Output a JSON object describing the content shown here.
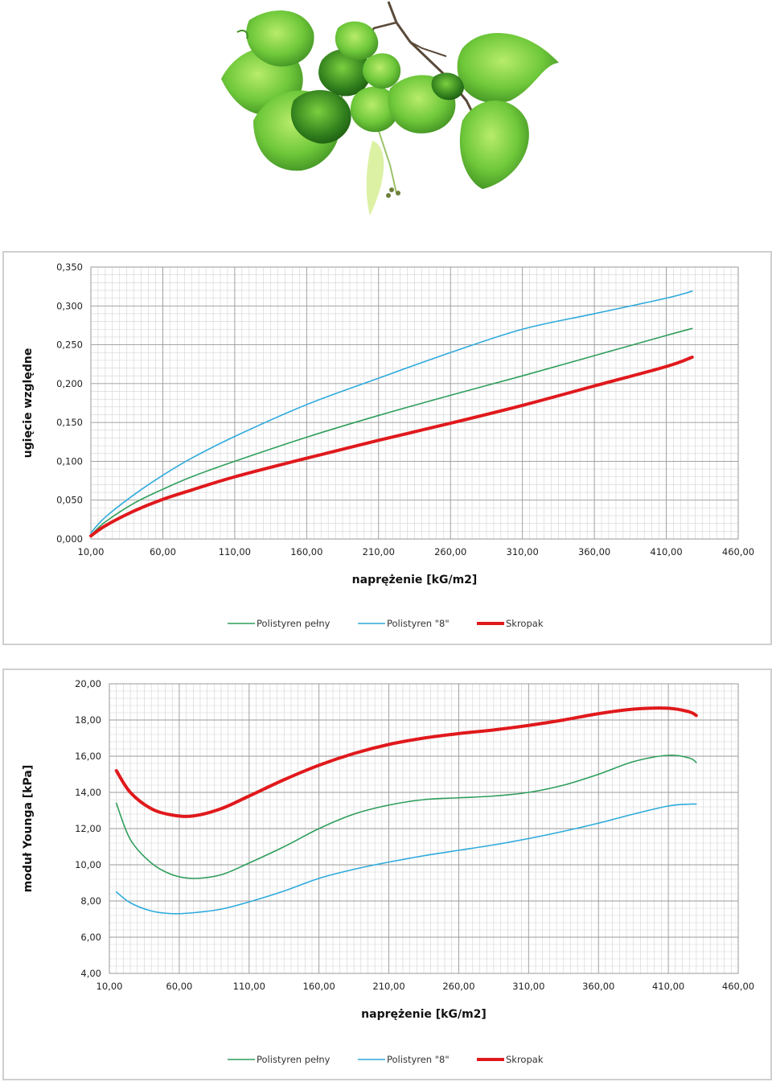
{
  "leaf_image": {
    "icon": "linden-leaves-branch-icon"
  },
  "charts": [
    {
      "type": "line",
      "xlabel": "naprężenie [kG/m2]",
      "ylabel": "ugięcie względne",
      "xlim": [
        10,
        460
      ],
      "ylim": [
        0,
        0.35
      ],
      "x_ticks": [
        "10,00",
        "60,00",
        "110,00",
        "160,00",
        "210,00",
        "260,00",
        "310,00",
        "360,00",
        "410,00",
        "460,00"
      ],
      "y_ticks": [
        "0,000",
        "0,050",
        "0,100",
        "0,150",
        "0,200",
        "0,250",
        "0,300",
        "0,350"
      ],
      "x_tick_values": [
        10,
        60,
        110,
        160,
        210,
        260,
        310,
        360,
        410,
        460
      ],
      "y_tick_values": [
        0,
        0.05,
        0.1,
        0.15,
        0.2,
        0.25,
        0.3,
        0.35
      ],
      "grid": true,
      "legend_position": "bottom",
      "x": [
        10,
        20,
        40,
        60,
        80,
        110,
        160,
        210,
        260,
        310,
        360,
        410,
        428
      ],
      "series": [
        {
          "name": "Polistyren pełny",
          "color": "#2e9e5b",
          "width": 1.6,
          "values": [
            0.005,
            0.022,
            0.046,
            0.064,
            0.08,
            0.1,
            0.131,
            0.159,
            0.185,
            0.21,
            0.236,
            0.262,
            0.271
          ]
        },
        {
          "name": "Polistyren \"8\"",
          "color": "#2eaadc",
          "width": 1.6,
          "values": [
            0.008,
            0.028,
            0.057,
            0.082,
            0.104,
            0.132,
            0.173,
            0.207,
            0.24,
            0.27,
            0.29,
            0.31,
            0.319
          ]
        },
        {
          "name": "Skropak",
          "color": "#e0191c",
          "width": 4,
          "values": [
            0.004,
            0.017,
            0.036,
            0.051,
            0.063,
            0.08,
            0.104,
            0.127,
            0.149,
            0.172,
            0.197,
            0.222,
            0.234
          ]
        }
      ]
    },
    {
      "type": "line",
      "xlabel": "naprężenie [kG/m2]",
      "ylabel": "moduł Younga [kPa]",
      "xlim": [
        10,
        460
      ],
      "ylim": [
        4,
        20
      ],
      "x_ticks": [
        "10,00",
        "60,00",
        "110,00",
        "160,00",
        "210,00",
        "260,00",
        "310,00",
        "360,00",
        "410,00",
        "460,00"
      ],
      "y_ticks": [
        "4,00",
        "6,00",
        "8,00",
        "10,00",
        "12,00",
        "14,00",
        "16,00",
        "18,00",
        "20,00"
      ],
      "x_tick_values": [
        10,
        60,
        110,
        160,
        210,
        260,
        310,
        360,
        410,
        460
      ],
      "y_tick_values": [
        4,
        6,
        8,
        10,
        12,
        14,
        16,
        18,
        20
      ],
      "grid": true,
      "legend_position": "bottom",
      "x": [
        15,
        25,
        40,
        55,
        70,
        90,
        110,
        135,
        160,
        185,
        210,
        235,
        260,
        285,
        310,
        335,
        360,
        385,
        410,
        425,
        430
      ],
      "series": [
        {
          "name": "Polistyren pełny",
          "color": "#2e9e5b",
          "width": 1.6,
          "values": [
            13.4,
            11.4,
            10.1,
            9.45,
            9.25,
            9.45,
            10.1,
            11.0,
            12.0,
            12.8,
            13.3,
            13.6,
            13.7,
            13.8,
            14.0,
            14.4,
            15.0,
            15.7,
            16.05,
            15.9,
            15.65
          ]
        },
        {
          "name": "Polistyren \"8\"",
          "color": "#2eaadc",
          "width": 1.6,
          "values": [
            8.5,
            7.9,
            7.45,
            7.3,
            7.35,
            7.55,
            7.95,
            8.55,
            9.25,
            9.75,
            10.15,
            10.5,
            10.8,
            11.1,
            11.45,
            11.85,
            12.3,
            12.8,
            13.25,
            13.35,
            13.35
          ]
        },
        {
          "name": "Skropak",
          "color": "#e0191c",
          "width": 4,
          "values": [
            15.2,
            14.0,
            13.1,
            12.75,
            12.7,
            13.1,
            13.8,
            14.7,
            15.5,
            16.15,
            16.65,
            17.0,
            17.25,
            17.45,
            17.7,
            18.0,
            18.35,
            18.6,
            18.65,
            18.45,
            18.25
          ]
        }
      ]
    }
  ]
}
